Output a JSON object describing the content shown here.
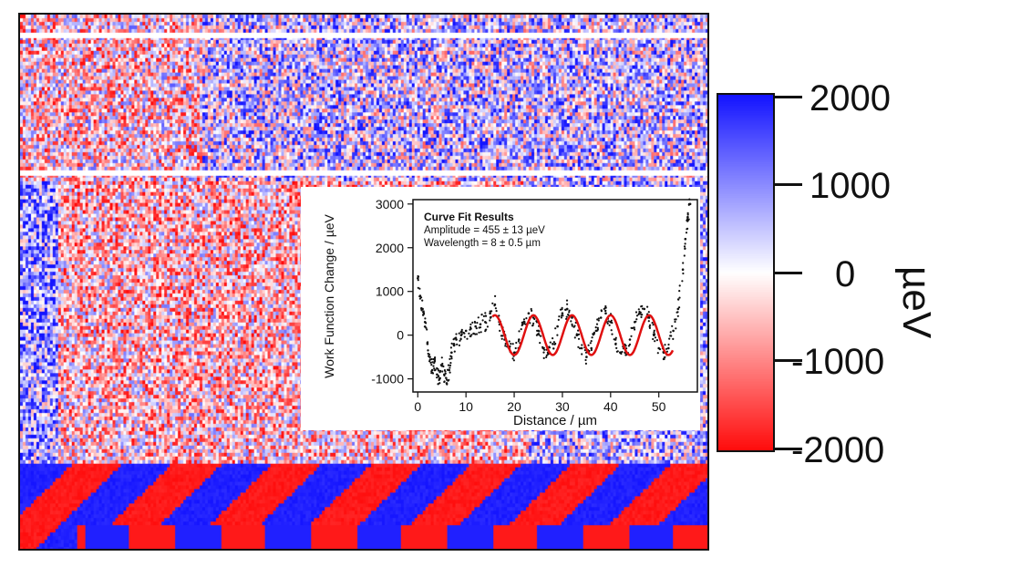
{
  "chart_data": [
    {
      "type": "heatmap",
      "colorbar": {
        "ticks": [
          "2000",
          "1000",
          "0",
          "-1000",
          "-2000"
        ],
        "unit": "µeV",
        "range": [
          -2000,
          2000
        ],
        "colors": {
          "high": "#1414ff",
          "mid": "#ffffff",
          "low": "#ff0d0d"
        }
      },
      "features": {
        "white_gap_rows": 2,
        "bottom_band": "alternating red and blue blocks"
      }
    },
    {
      "type": "scatter",
      "xlabel": "Distance / µm",
      "ylabel": "Work Function Change / µeV",
      "xlim": [
        -1,
        58
      ],
      "ylim": [
        -1300,
        3100
      ],
      "xticks": [
        "0",
        "10",
        "20",
        "30",
        "40",
        "50"
      ],
      "yticks": [
        "3000",
        "2000",
        "1000",
        "0",
        "-1000"
      ],
      "annotation": {
        "title": "Curve Fit Results",
        "line1": "Amplitude = 455 ± 13 µeV",
        "line2": "Wavelength = 8 ± 0.5 µm"
      },
      "fit": {
        "amplitude": 455,
        "wavelength": 8,
        "x_range": [
          15.5,
          53
        ],
        "color": "#e01010"
      },
      "series_points": [
        [
          0,
          1300
        ],
        [
          0.5,
          900
        ],
        [
          1,
          600
        ],
        [
          1.5,
          300
        ],
        [
          2,
          -200
        ],
        [
          2.5,
          -500
        ],
        [
          3,
          -800
        ],
        [
          3.5,
          -600
        ],
        [
          4,
          -900
        ],
        [
          4.5,
          -1000
        ],
        [
          5,
          -700
        ],
        [
          5.5,
          -900
        ],
        [
          6,
          -1100
        ],
        [
          6.5,
          -800
        ],
        [
          7,
          -400
        ],
        [
          7.5,
          -200
        ],
        [
          8,
          -100
        ],
        [
          9,
          0
        ],
        [
          10,
          100
        ],
        [
          11,
          150
        ],
        [
          12,
          200
        ],
        [
          13,
          250
        ],
        [
          14,
          300
        ],
        [
          15,
          500
        ],
        [
          16,
          700
        ],
        [
          17,
          300
        ],
        [
          18,
          -100
        ],
        [
          19,
          -300
        ],
        [
          20,
          -400
        ],
        [
          21,
          -100
        ],
        [
          22,
          300
        ],
        [
          23,
          500
        ],
        [
          24,
          400
        ],
        [
          25,
          100
        ],
        [
          26,
          -300
        ],
        [
          27,
          -400
        ],
        [
          28,
          -200
        ],
        [
          29,
          200
        ],
        [
          30,
          500
        ],
        [
          31,
          600
        ],
        [
          32,
          400
        ],
        [
          33,
          0
        ],
        [
          34,
          -300
        ],
        [
          35,
          -500
        ],
        [
          36,
          -300
        ],
        [
          37,
          100
        ],
        [
          38,
          400
        ],
        [
          39,
          500
        ],
        [
          40,
          300
        ],
        [
          41,
          -100
        ],
        [
          42,
          -400
        ],
        [
          43,
          -400
        ],
        [
          44,
          -100
        ],
        [
          45,
          300
        ],
        [
          46,
          500
        ],
        [
          47,
          600
        ],
        [
          48,
          400
        ],
        [
          49,
          0
        ],
        [
          50,
          -300
        ],
        [
          51,
          -400
        ],
        [
          52,
          -300
        ],
        [
          53,
          100
        ],
        [
          54,
          600
        ],
        [
          55,
          1500
        ],
        [
          55.5,
          2200
        ],
        [
          56,
          2700
        ],
        [
          56.5,
          3000
        ]
      ]
    }
  ]
}
